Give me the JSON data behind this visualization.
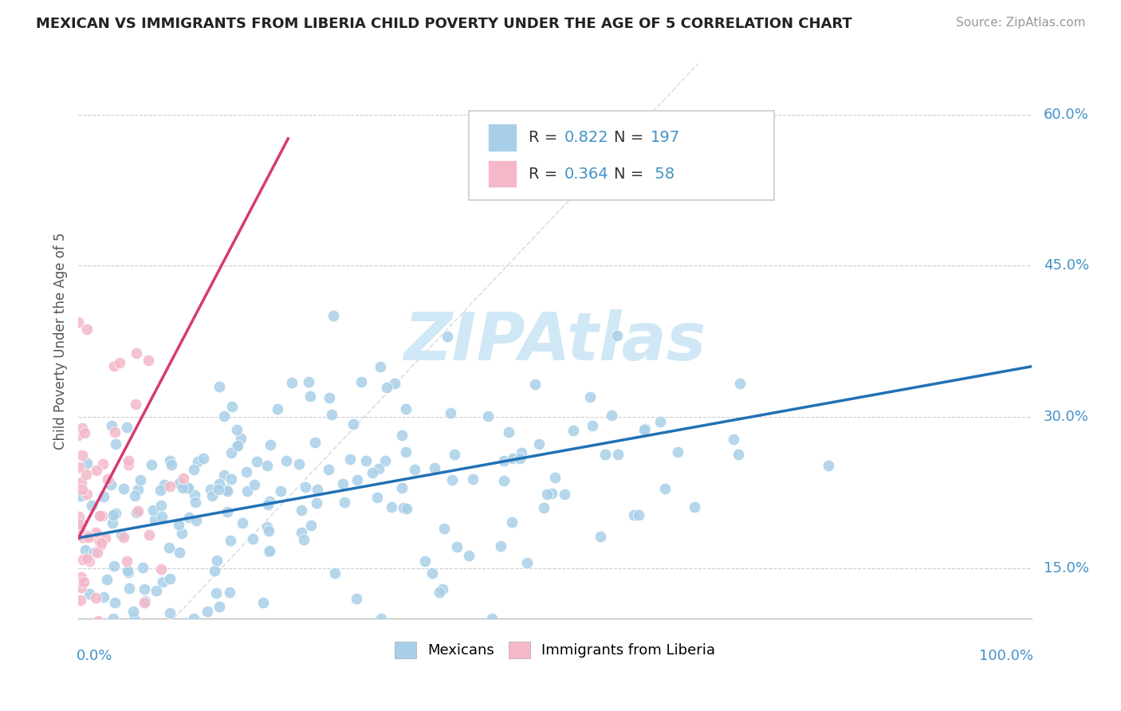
{
  "title": "MEXICAN VS IMMIGRANTS FROM LIBERIA CHILD POVERTY UNDER THE AGE OF 5 CORRELATION CHART",
  "source": "Source: ZipAtlas.com",
  "ylabel": "Child Poverty Under the Age of 5",
  "yticks": [
    0.15,
    0.3,
    0.45,
    0.6
  ],
  "ytick_labels": [
    "15.0%",
    "30.0%",
    "45.0%",
    "60.0%"
  ],
  "blue_color": "#a8cfe8",
  "pink_color": "#f4b8c8",
  "line_blue": "#2171b5",
  "line_pink": "#d63b6e",
  "diagonal_color": "#d0d0d0",
  "watermark_color": "#d0e8f5",
  "background_color": "#ffffff",
  "grid_color": "#cccccc",
  "axis_label_color": "#4292c6",
  "text_dark": "#333333",
  "R_blue": 0.822,
  "N_blue": 197,
  "R_pink": 0.364,
  "N_pink": 58,
  "title_fontsize": 13,
  "source_fontsize": 11,
  "tick_label_fontsize": 13,
  "ylabel_fontsize": 12,
  "legend_fontsize": 14,
  "watermark_fontsize": 60,
  "scatter_size": 110
}
